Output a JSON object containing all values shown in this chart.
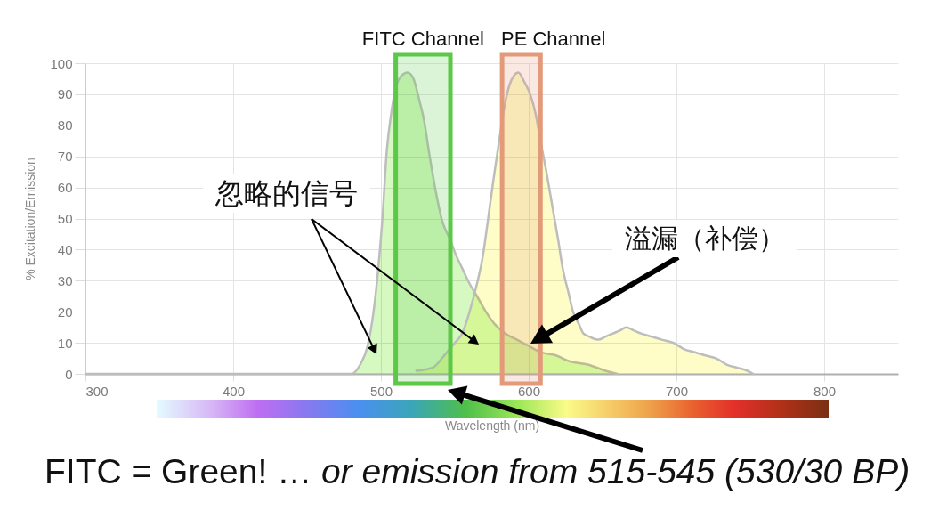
{
  "chart_data": {
    "type": "area",
    "xlabel": "Wavelength (nm)",
    "ylabel": "% Excitation/Emission",
    "xlim": [
      300,
      850
    ],
    "xticks": [
      300,
      400,
      500,
      600,
      700,
      800
    ],
    "ylim": [
      0,
      100
    ],
    "yticks": [
      0,
      10,
      20,
      30,
      40,
      50,
      60,
      70,
      80,
      90,
      100
    ],
    "grid": true,
    "series": [
      {
        "color": "#c4f7a8",
        "x": [
          300,
          480,
          486,
          491,
          495,
          498,
          501,
          504,
          507,
          510,
          514,
          518,
          522,
          526,
          529,
          533,
          537,
          541,
          547,
          551,
          555,
          560,
          565,
          571,
          577,
          584,
          592,
          600,
          608,
          618,
          628,
          640,
          652,
          660
        ],
        "values": [
          0,
          0,
          3,
          9,
          20,
          33,
          50,
          72,
          84,
          92,
          96,
          97,
          95,
          88,
          82,
          70,
          59,
          50,
          43,
          38,
          34,
          29,
          25,
          20,
          16,
          13,
          11,
          9,
          7,
          6,
          4,
          3,
          1,
          0
        ]
      },
      {
        "color": "#fefdb0",
        "x": [
          524,
          535,
          543,
          550,
          555,
          560,
          565,
          569,
          572,
          576,
          580,
          584,
          587,
          590,
          593,
          597,
          601,
          605,
          608,
          612,
          616,
          620,
          623,
          627,
          630,
          634,
          637,
          641,
          647,
          652,
          657,
          662,
          666,
          671,
          676,
          683,
          690,
          698,
          705,
          712,
          719,
          727,
          734,
          741,
          748,
          752
        ],
        "values": [
          1,
          2,
          6,
          10,
          13,
          20,
          29,
          38,
          48,
          62,
          75,
          87,
          93,
          96,
          97,
          94,
          90,
          83,
          75,
          65,
          54,
          43,
          34,
          26,
          20,
          16,
          13,
          12,
          11,
          12,
          13,
          14,
          15,
          14,
          13,
          12,
          11,
          10,
          8,
          7,
          6,
          5,
          3,
          2,
          1,
          0
        ]
      }
    ],
    "bands": [
      {
        "axis": "x",
        "from": 510,
        "to": 547,
        "label": "FITC Channel",
        "color": "#5cc847"
      },
      {
        "axis": "x",
        "from": 582,
        "to": 608,
        "label": "PE Channel",
        "color": "#e39a7a"
      }
    ],
    "annotations": [
      "忽略的信号",
      "溢漏（补偿）",
      "FITC = Green! …",
      "or emission from 515-545 (530/30 BP)"
    ]
  }
}
